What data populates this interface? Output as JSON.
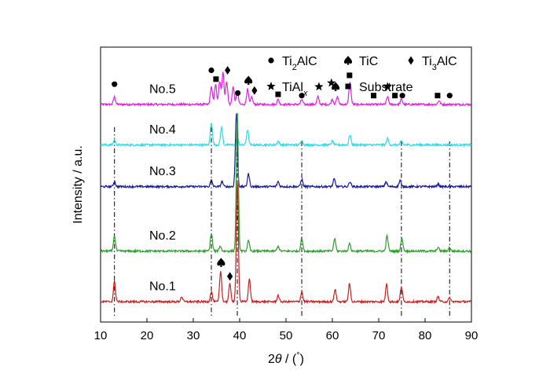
{
  "chart_data": {
    "type": "line",
    "xlabel": "2θ / (°)",
    "ylabel": "Intensity / a.u.",
    "xlim": [
      10,
      90
    ],
    "xticks": [
      10,
      20,
      30,
      40,
      50,
      60,
      70,
      80,
      90
    ],
    "yticks_shown": false,
    "grid": false,
    "legend_position": "top-right",
    "legend": [
      {
        "marker": "circle",
        "label_main": "Ti",
        "label_sub": "2",
        "label_tail": "AlC"
      },
      {
        "marker": "spade",
        "label_main": "TiC",
        "label_sub": "",
        "label_tail": ""
      },
      {
        "marker": "diamond",
        "label_main": "Ti",
        "label_sub": "3",
        "label_tail": "AlC"
      },
      {
        "marker": "star",
        "label_main": "TiAl",
        "label_sub": "x",
        "label_tail": ""
      },
      {
        "marker": "square",
        "label_main": "Substrate",
        "label_sub": "",
        "label_tail": ""
      }
    ],
    "reference_lines_2theta": [
      13.0,
      33.9,
      39.5,
      53.4,
      74.9,
      85.3
    ],
    "series": [
      {
        "name": "No.5",
        "color": "#e020e0",
        "baseline": 0.82,
        "peaks": [
          [
            13.0,
            0.03
          ],
          [
            33.9,
            0.07
          ],
          [
            34.8,
            0.08
          ],
          [
            35.7,
            0.09
          ],
          [
            36.4,
            0.13
          ],
          [
            37.2,
            0.09
          ],
          [
            38.6,
            0.07
          ],
          [
            39.5,
            0.05
          ],
          [
            41.7,
            0.06
          ],
          [
            42.6,
            0.03
          ],
          [
            48.3,
            0.02
          ],
          [
            53.4,
            0.02
          ],
          [
            56.9,
            0.03
          ],
          [
            60.0,
            0.02
          ],
          [
            61.1,
            0.03
          ],
          [
            63.8,
            0.09
          ],
          [
            71.9,
            0.03
          ],
          [
            74.9,
            0.02
          ],
          [
            83.0,
            0.015
          ]
        ],
        "markers": [
          {
            "type": "circle",
            "x": 13.0,
            "level": 0.9
          },
          {
            "type": "circle",
            "x": 33.9,
            "level": 0.955
          },
          {
            "type": "square",
            "x": 34.9,
            "level": 0.92
          },
          {
            "type": "diamond",
            "x": 37.4,
            "level": 0.955
          },
          {
            "type": "circle",
            "x": 39.6,
            "level": 0.865
          },
          {
            "type": "spade",
            "x": 41.9,
            "level": 0.915
          },
          {
            "type": "diamond",
            "x": 43.2,
            "level": 0.875
          },
          {
            "type": "square",
            "x": 48.3,
            "level": 0.86
          },
          {
            "type": "circle",
            "x": 53.4,
            "level": 0.855
          },
          {
            "type": "star",
            "x": 57.1,
            "level": 0.89
          },
          {
            "type": "star",
            "x": 59.8,
            "level": 0.905
          },
          {
            "type": "spade",
            "x": 60.7,
            "level": 0.89
          },
          {
            "type": "square",
            "x": 63.7,
            "level": 0.935
          },
          {
            "type": "square",
            "x": 68.9,
            "level": 0.855
          },
          {
            "type": "star",
            "x": 71.9,
            "level": 0.89
          },
          {
            "type": "square",
            "x": 73.5,
            "level": 0.855
          },
          {
            "type": "circle",
            "x": 75.1,
            "level": 0.855
          },
          {
            "type": "square",
            "x": 82.7,
            "level": 0.855
          },
          {
            "type": "circle",
            "x": 85.3,
            "level": 0.855
          }
        ]
      },
      {
        "name": "No.4",
        "color": "#30d8e8",
        "baseline": 0.66,
        "peaks": [
          [
            13.0,
            0.02
          ],
          [
            33.9,
            0.09
          ],
          [
            36.1,
            0.07
          ],
          [
            39.5,
            0.03
          ],
          [
            41.7,
            0.06
          ],
          [
            48.3,
            0.015
          ],
          [
            53.4,
            0.02
          ],
          [
            60.0,
            0.015
          ],
          [
            63.8,
            0.04
          ],
          [
            71.9,
            0.025
          ],
          [
            74.9,
            0.015
          ]
        ],
        "markers": []
      },
      {
        "name": "No.3",
        "color": "#1a1a99",
        "baseline": 0.495,
        "peaks": [
          [
            13.0,
            0.02
          ],
          [
            33.9,
            0.025
          ],
          [
            36.2,
            0.02
          ],
          [
            39.3,
            0.29
          ],
          [
            41.9,
            0.05
          ],
          [
            48.3,
            0.02
          ],
          [
            53.4,
            0.03
          ],
          [
            60.4,
            0.03
          ],
          [
            63.8,
            0.02
          ],
          [
            71.6,
            0.02
          ],
          [
            74.6,
            0.025
          ],
          [
            82.8,
            0.01
          ]
        ],
        "markers": []
      },
      {
        "name": "No.2",
        "color": "#2aa02a",
        "baseline": 0.24,
        "peaks": [
          [
            13.0,
            0.06
          ],
          [
            33.9,
            0.07
          ],
          [
            35.8,
            0.02
          ],
          [
            39.5,
            0.55
          ],
          [
            41.9,
            0.04
          ],
          [
            48.3,
            0.02
          ],
          [
            53.4,
            0.05
          ],
          [
            60.5,
            0.05
          ],
          [
            63.7,
            0.03
          ],
          [
            71.8,
            0.06
          ],
          [
            75.0,
            0.05
          ],
          [
            82.8,
            0.015
          ],
          [
            85.3,
            0.015
          ]
        ],
        "markers": []
      },
      {
        "name": "No.1",
        "color": "#c82020",
        "baseline": 0.04,
        "peaks": [
          [
            13.0,
            0.08
          ],
          [
            27.5,
            0.02
          ],
          [
            33.9,
            0.04
          ],
          [
            35.9,
            0.12
          ],
          [
            37.9,
            0.07
          ],
          [
            39.5,
            0.48
          ],
          [
            42.1,
            0.09
          ],
          [
            48.3,
            0.025
          ],
          [
            53.4,
            0.04
          ],
          [
            60.6,
            0.05
          ],
          [
            63.7,
            0.07
          ],
          [
            71.7,
            0.07
          ],
          [
            74.9,
            0.06
          ],
          [
            82.8,
            0.02
          ],
          [
            85.3,
            0.015
          ]
        ],
        "markers": [
          {
            "type": "spade",
            "x": 36.0,
            "level": 0.195
          },
          {
            "type": "diamond",
            "x": 37.9,
            "level": 0.14
          }
        ]
      }
    ]
  }
}
